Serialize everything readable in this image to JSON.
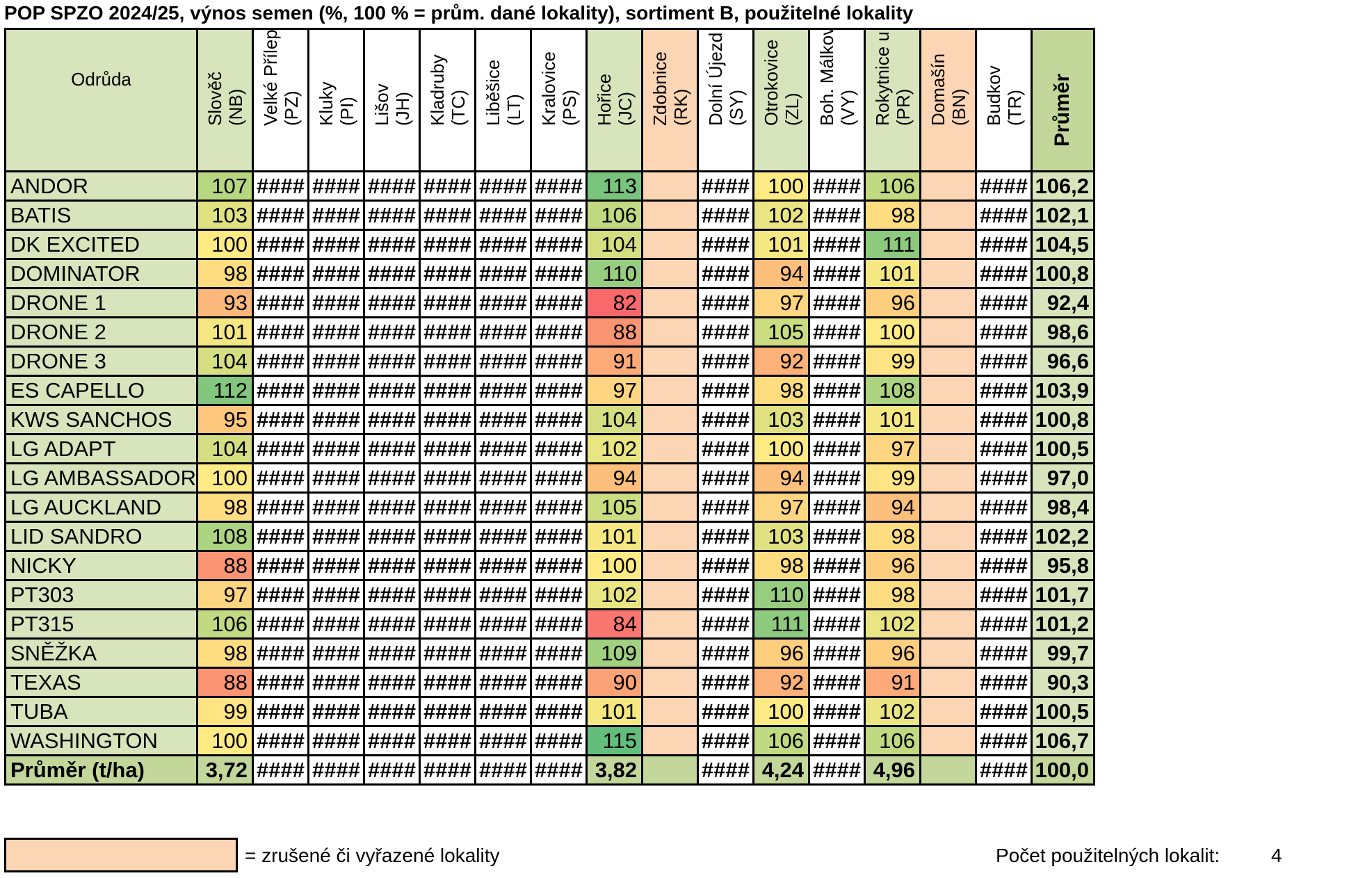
{
  "title": "POP SPZO 2024/25, výnos semen (%, 100 % = prům. dané lokality), sortiment B, použitelné lokality",
  "header": {
    "variety_label": "Odrůda",
    "locations": [
      {
        "name": "Slověč",
        "code": "(NB)"
      },
      {
        "name": "Velké Přílepy",
        "code": "(PZ)"
      },
      {
        "name": "Kluky",
        "code": "(PI)"
      },
      {
        "name": "Lišov",
        "code": "(JH)"
      },
      {
        "name": "Kladruby",
        "code": "(TC)"
      },
      {
        "name": "Liběšice",
        "code": "(LT)"
      },
      {
        "name": "Kralovice",
        "code": "(PS)"
      },
      {
        "name": "Hořice",
        "code": "(JC)"
      },
      {
        "name": "Zdobnice",
        "code": "(RK)"
      },
      {
        "name": "Dolní Újezd",
        "code": "(SY)"
      },
      {
        "name": "Otrokovice",
        "code": "(ZL)"
      },
      {
        "name": "Boh. Málkovice",
        "code": "(VY)"
      },
      {
        "name": "Rokytnice u Př.",
        "code": "(PR)"
      },
      {
        "name": "Domašín",
        "code": "(BN)"
      },
      {
        "name": "Budkov",
        "code": "(TR)"
      }
    ],
    "average_label": "Průměr"
  },
  "colors": {
    "header_green": "#d8e4bc",
    "avg_green": "#c4d79b",
    "excluded_pink": "#fcd5b4",
    "scale_low": "#f8696b",
    "scale_mid": "#ffeb84",
    "scale_high": "#63be7b"
  },
  "hash_value": "####",
  "rows": [
    {
      "name": "ANDOR",
      "slovec": "107",
      "horice": "113",
      "otrokovice": "100",
      "rokytnice": "106",
      "avg": "106,2"
    },
    {
      "name": "BATIS",
      "slovec": "103",
      "horice": "106",
      "otrokovice": "102",
      "rokytnice": "98",
      "avg": "102,1"
    },
    {
      "name": "DK EXCITED",
      "slovec": "100",
      "horice": "104",
      "otrokovice": "101",
      "rokytnice": "111",
      "avg": "104,5"
    },
    {
      "name": "DOMINATOR",
      "slovec": "98",
      "horice": "110",
      "otrokovice": "94",
      "rokytnice": "101",
      "avg": "100,8"
    },
    {
      "name": "DRONE 1",
      "slovec": "93",
      "horice": "82",
      "otrokovice": "97",
      "rokytnice": "96",
      "avg": "92,4"
    },
    {
      "name": "DRONE 2",
      "slovec": "101",
      "horice": "88",
      "otrokovice": "105",
      "rokytnice": "100",
      "avg": "98,6"
    },
    {
      "name": "DRONE 3",
      "slovec": "104",
      "horice": "91",
      "otrokovice": "92",
      "rokytnice": "99",
      "avg": "96,6"
    },
    {
      "name": "ES CAPELLO",
      "slovec": "112",
      "horice": "97",
      "otrokovice": "98",
      "rokytnice": "108",
      "avg": "103,9"
    },
    {
      "name": "KWS SANCHOS",
      "slovec": "95",
      "horice": "104",
      "otrokovice": "103",
      "rokytnice": "101",
      "avg": "100,8"
    },
    {
      "name": "LG ADAPT",
      "slovec": "104",
      "horice": "102",
      "otrokovice": "100",
      "rokytnice": "97",
      "avg": "100,5"
    },
    {
      "name": "LG AMBASSADOR",
      "slovec": "100",
      "horice": "94",
      "otrokovice": "94",
      "rokytnice": "99",
      "avg": "97,0"
    },
    {
      "name": "LG AUCKLAND",
      "slovec": "98",
      "horice": "105",
      "otrokovice": "97",
      "rokytnice": "94",
      "avg": "98,4"
    },
    {
      "name": "LID SANDRO",
      "slovec": "108",
      "horice": "101",
      "otrokovice": "103",
      "rokytnice": "98",
      "avg": "102,2"
    },
    {
      "name": "NICKY",
      "slovec": "88",
      "horice": "100",
      "otrokovice": "98",
      "rokytnice": "96",
      "avg": "95,8"
    },
    {
      "name": "PT303",
      "slovec": "97",
      "horice": "102",
      "otrokovice": "110",
      "rokytnice": "98",
      "avg": "101,7"
    },
    {
      "name": "PT315",
      "slovec": "106",
      "horice": "84",
      "otrokovice": "111",
      "rokytnice": "102",
      "avg": "101,2"
    },
    {
      "name": "SNĚŽKA",
      "slovec": "98",
      "horice": "109",
      "otrokovice": "96",
      "rokytnice": "96",
      "avg": "99,7"
    },
    {
      "name": "TEXAS",
      "slovec": "88",
      "horice": "90",
      "otrokovice": "92",
      "rokytnice": "91",
      "avg": "90,3"
    },
    {
      "name": "TUBA",
      "slovec": "99",
      "horice": "101",
      "otrokovice": "100",
      "rokytnice": "102",
      "avg": "100,5"
    },
    {
      "name": "WASHINGTON",
      "slovec": "100",
      "horice": "115",
      "otrokovice": "106",
      "rokytnice": "106",
      "avg": "106,7"
    }
  ],
  "footer": {
    "label": "Průměr (t/ha)",
    "slovec": "3,72",
    "horice": "3,82",
    "otrokovice": "4,24",
    "rokytnice": "4,96",
    "avg": "100,0"
  },
  "legend": {
    "text": "= zrušené či vyřazené lokality",
    "count_label": "Počet použitelných lokalit:",
    "count_value": "4"
  }
}
